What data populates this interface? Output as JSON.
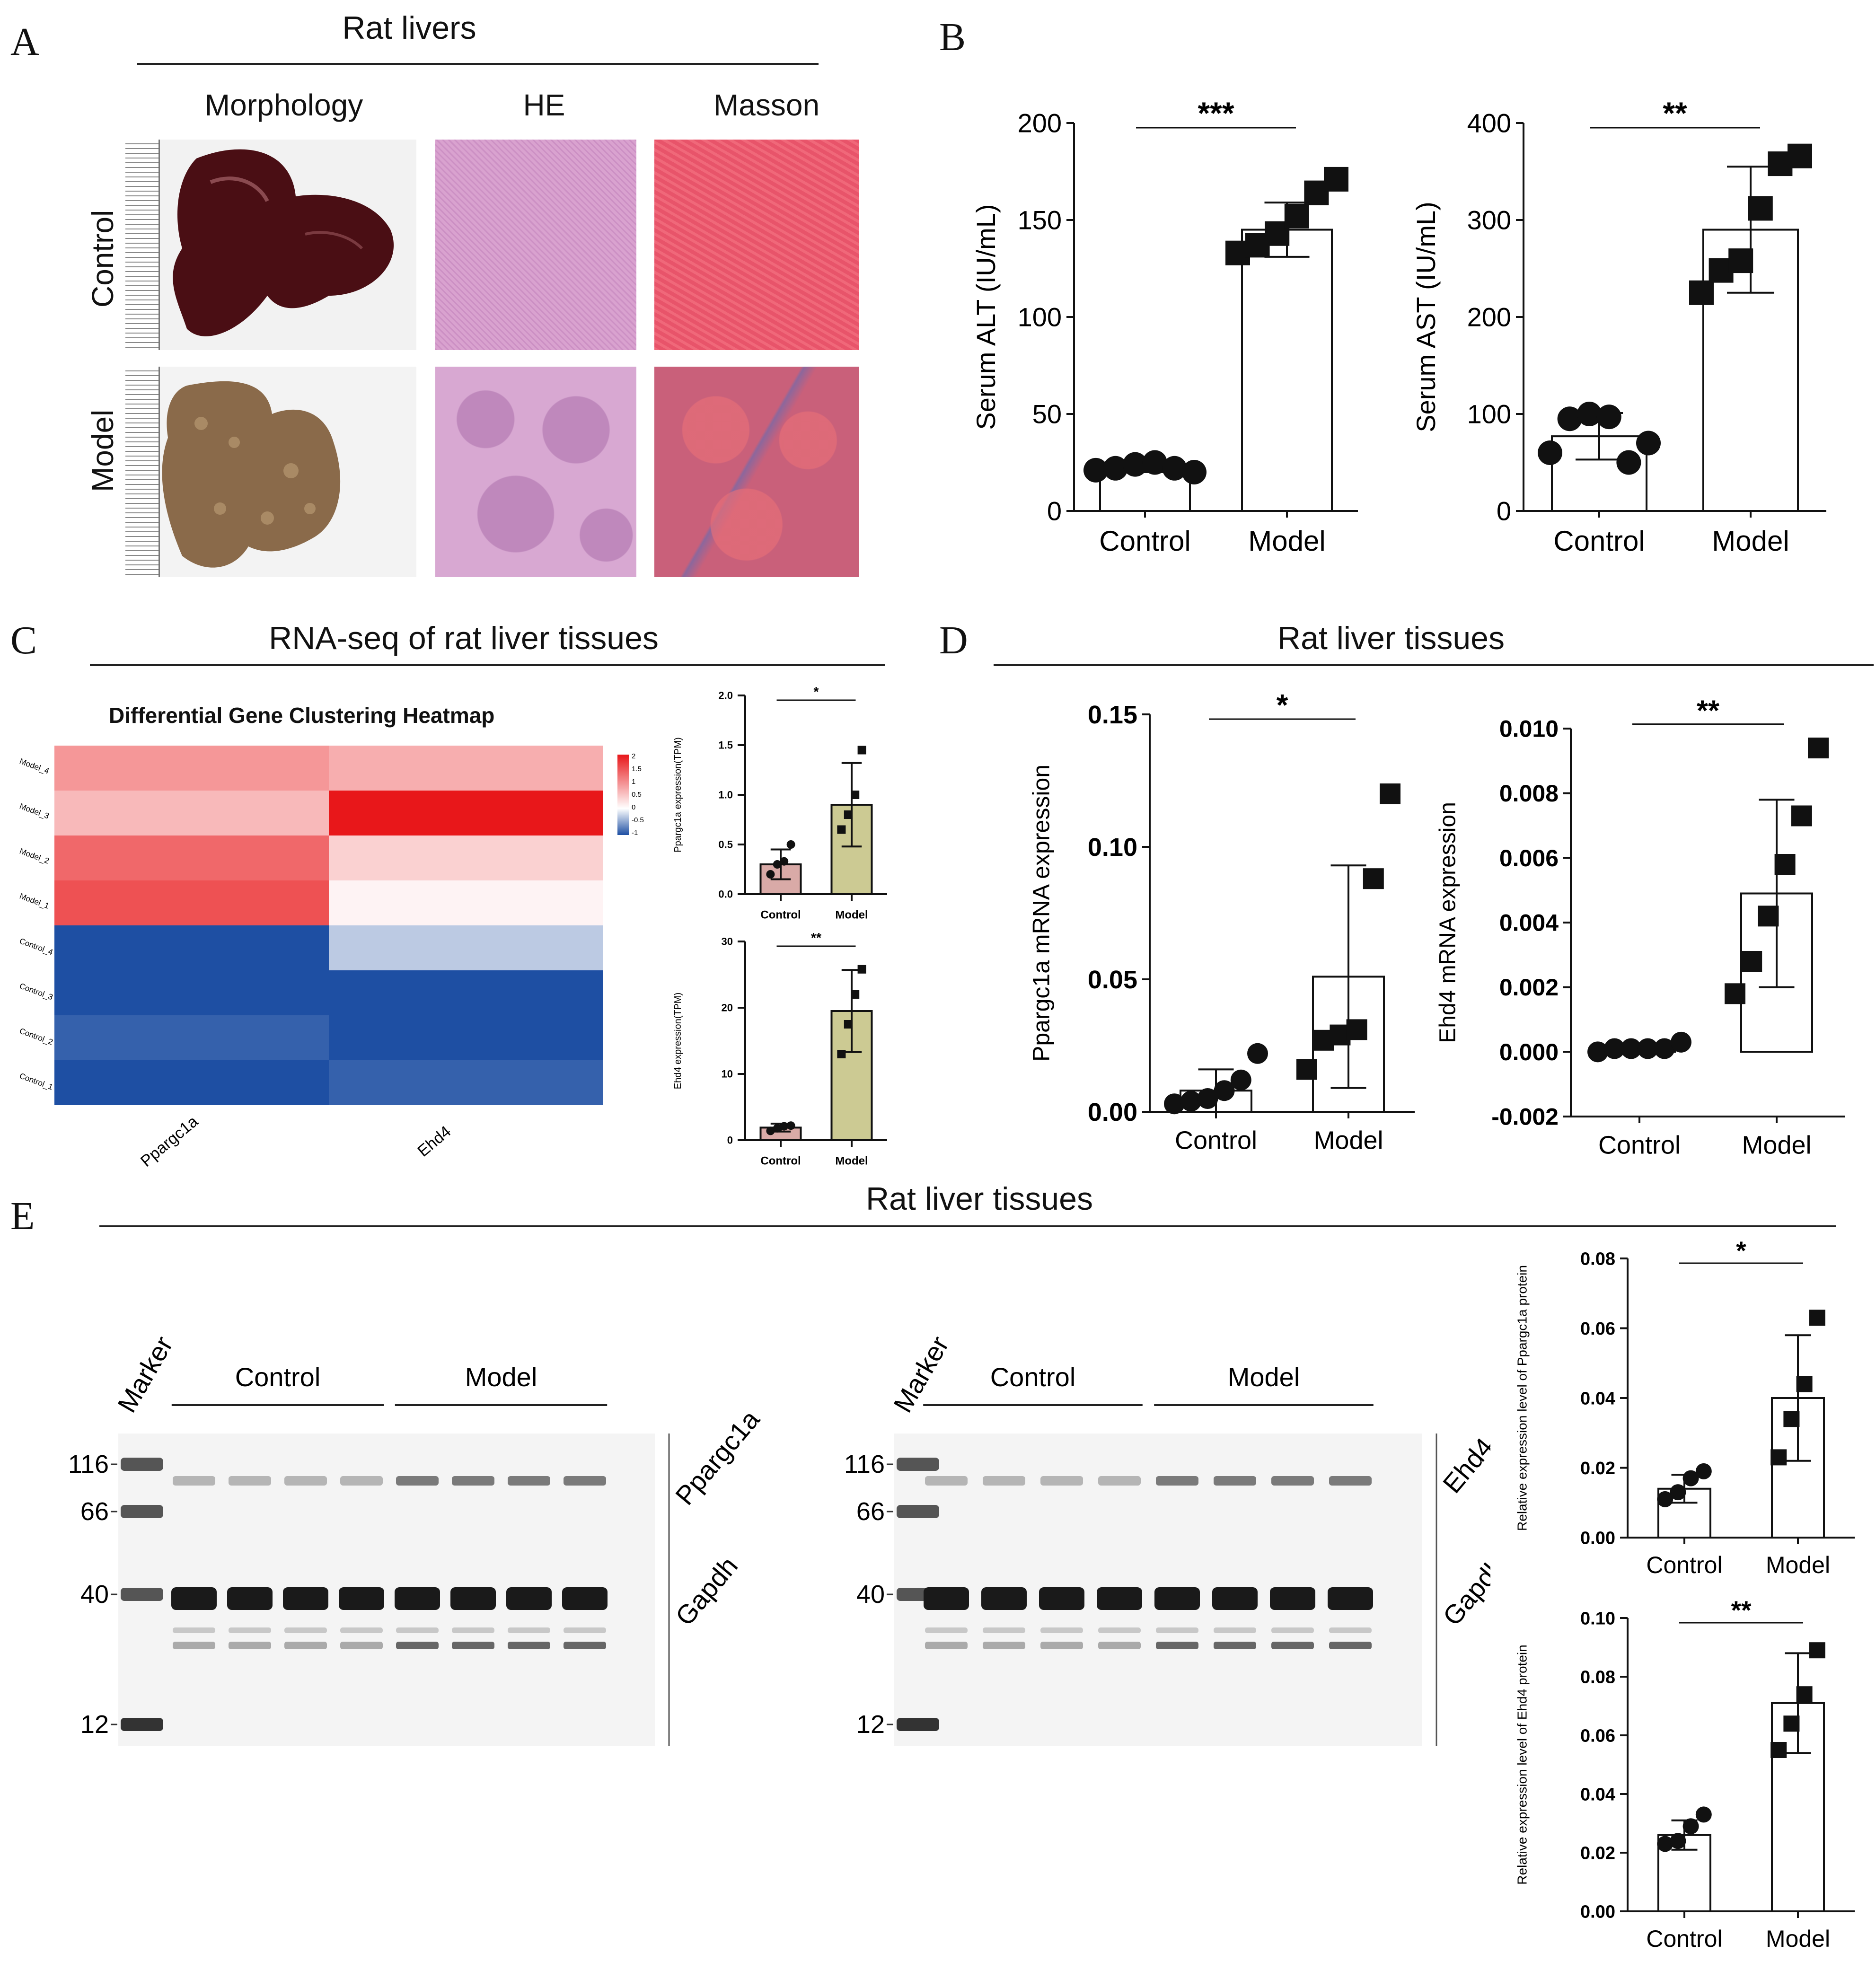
{
  "panels": {
    "a": {
      "letter": "A",
      "title": "Rat livers",
      "columns": [
        "Morphology",
        "HE",
        "Masson"
      ],
      "rows": [
        "Control",
        "Model"
      ]
    },
    "b": {
      "letter": "B"
    },
    "c": {
      "letter": "C",
      "title": "RNA-seq of rat liver tissues",
      "heatmap_title": "Differential Gene Clustering Heatmap"
    },
    "d": {
      "letter": "D",
      "title": "Rat liver tissues"
    },
    "e": {
      "letter": "E",
      "title": "Rat liver tissues"
    }
  },
  "colors": {
    "heat_high": "#e8171a",
    "heat_low": "#1e4fa3",
    "heat_mid": "#ffffff",
    "tpm_control": "#d9aaa7",
    "tpm_model": "#ccca93"
  },
  "heatmap": {
    "rows": [
      "Model_4",
      "Model_3",
      "Model_2",
      "Model_1",
      "Control_4",
      "Control_3",
      "Control_2",
      "Control_1"
    ],
    "cols": [
      "Ppargc1a",
      "Ehd4"
    ],
    "values": [
      [
        0.9,
        0.7
      ],
      [
        0.6,
        2.0
      ],
      [
        1.3,
        0.4
      ],
      [
        1.5,
        0.1
      ],
      [
        -1.0,
        -0.3
      ],
      [
        -1.0,
        -1.0
      ],
      [
        -0.9,
        -1.1
      ],
      [
        -1.0,
        -0.9
      ]
    ],
    "legend": [
      "2",
      "1.5",
      "1",
      "0.5",
      "0",
      "-0.5",
      "-1"
    ]
  },
  "gels": [
    {
      "marker": "Marker",
      "groups": [
        "Control",
        "Model"
      ],
      "sizes": [
        "116",
        "66",
        "40",
        "12"
      ],
      "labels": [
        "Ppargc1a",
        "Gapdh"
      ]
    },
    {
      "marker": "Marker",
      "groups": [
        "Control",
        "Model"
      ],
      "sizes": [
        "116",
        "66",
        "40",
        "12"
      ],
      "labels": [
        "Ehd4",
        "Gapdh"
      ]
    }
  ],
  "chart_data": [
    {
      "id": "alt",
      "type": "bar",
      "categories": [
        "Control",
        "Model"
      ],
      "values": [
        23,
        145
      ],
      "errors": [
        3,
        14
      ],
      "points": [
        [
          21,
          22,
          24,
          25,
          22,
          20
        ],
        [
          133,
          137,
          143,
          152,
          164,
          171
        ]
      ],
      "ylabel": "Serum ALT (IU/mL)",
      "ylim": [
        0,
        200
      ],
      "yticks": [
        "0",
        "50",
        "100",
        "150",
        "200"
      ],
      "sig": "***"
    },
    {
      "id": "ast",
      "type": "bar",
      "categories": [
        "Control",
        "Model"
      ],
      "values": [
        77,
        290
      ],
      "errors": [
        24,
        65
      ],
      "points": [
        [
          60,
          95,
          100,
          97,
          50,
          70
        ],
        [
          225,
          248,
          258,
          312,
          358,
          366
        ]
      ],
      "ylabel": "Serum AST (IU/mL)",
      "ylim": [
        0,
        400
      ],
      "yticks": [
        "0",
        "100",
        "200",
        "300",
        "400"
      ],
      "sig": "**"
    },
    {
      "id": "tpm-ppargc1a",
      "type": "bar",
      "categories": [
        "Control",
        "Model"
      ],
      "values": [
        0.3,
        0.9
      ],
      "errors": [
        0.15,
        0.42
      ],
      "points": [
        [
          0.2,
          0.3,
          0.33,
          0.5
        ],
        [
          0.65,
          0.8,
          1.0,
          1.45
        ]
      ],
      "ylabel": "Ppargc1a expression(TPM)",
      "ylim": [
        0,
        2.0
      ],
      "yticks": [
        "0.0",
        "0.5",
        "1.0",
        "1.5",
        "2.0"
      ],
      "sig": "*"
    },
    {
      "id": "tpm-ehd4",
      "type": "bar",
      "categories": [
        "Control",
        "Model"
      ],
      "values": [
        1.9,
        19.5
      ],
      "errors": [
        0.6,
        6.2
      ],
      "points": [
        [
          1.4,
          1.8,
          2.1,
          2.2
        ],
        [
          13.0,
          17.5,
          22.0,
          25.8
        ]
      ],
      "ylabel": "Ehd4 expression(TPM)",
      "ylim": [
        0,
        30
      ],
      "yticks": [
        "0",
        "10",
        "20",
        "30"
      ],
      "sig": "**"
    },
    {
      "id": "mrna-ppargc1a",
      "type": "bar",
      "categories": [
        "Control",
        "Model"
      ],
      "values": [
        0.008,
        0.051
      ],
      "errors": [
        0.008,
        0.042
      ],
      "points": [
        [
          0.003,
          0.004,
          0.005,
          0.008,
          0.012,
          0.022
        ],
        [
          0.016,
          0.027,
          0.029,
          0.031,
          0.088,
          0.12
        ]
      ],
      "ylabel": "Ppargc1a mRNA expression",
      "ylim": [
        0,
        0.15
      ],
      "yticks": [
        "0.00",
        "0.05",
        "0.10",
        "0.15"
      ],
      "sig": "*"
    },
    {
      "id": "mrna-ehd4",
      "type": "bar",
      "categories": [
        "Control",
        "Model"
      ],
      "values": [
        0.0001,
        0.0049
      ],
      "errors": [
        0.0001,
        0.0029
      ],
      "points": [
        [
          0.0,
          0.0001,
          0.0001,
          0.0001,
          0.0001,
          0.0003
        ],
        [
          0.0018,
          0.0028,
          0.0042,
          0.0058,
          0.0073,
          0.0094
        ]
      ],
      "ylabel": "Ehd4 mRNA expression",
      "ylim": [
        -0.002,
        0.01
      ],
      "yticks": [
        "-0.002",
        "0.000",
        "0.002",
        "0.004",
        "0.006",
        "0.008",
        "0.010"
      ],
      "sig": "**"
    },
    {
      "id": "prot-ppargc1a",
      "type": "bar",
      "categories": [
        "Control",
        "Model"
      ],
      "values": [
        0.014,
        0.04
      ],
      "errors": [
        0.004,
        0.018
      ],
      "points": [
        [
          0.011,
          0.013,
          0.017,
          0.019
        ],
        [
          0.023,
          0.034,
          0.044,
          0.063
        ]
      ],
      "ylabel": "Relative expression level of Ppargc1a protein",
      "ylim": [
        0,
        0.08
      ],
      "yticks": [
        "0.00",
        "0.02",
        "0.04",
        "0.06",
        "0.08"
      ],
      "sig": "*"
    },
    {
      "id": "prot-ehd4",
      "type": "bar",
      "categories": [
        "Control",
        "Model"
      ],
      "values": [
        0.026,
        0.071
      ],
      "errors": [
        0.005,
        0.017
      ],
      "points": [
        [
          0.023,
          0.024,
          0.029,
          0.033
        ],
        [
          0.055,
          0.064,
          0.074,
          0.089
        ]
      ],
      "ylabel": "Relative expression level of Ehd4 protein",
      "ylim": [
        0,
        0.1
      ],
      "yticks": [
        "0.00",
        "0.02",
        "0.04",
        "0.06",
        "0.08",
        "0.10"
      ],
      "sig": "**"
    }
  ]
}
